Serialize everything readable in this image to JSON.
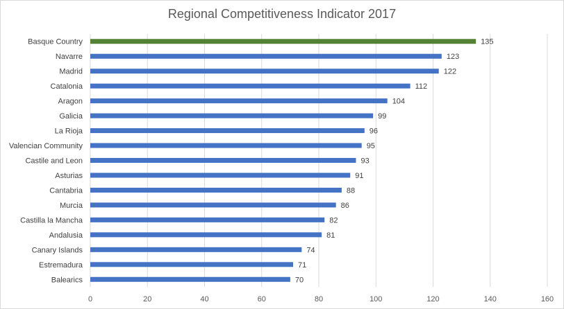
{
  "chart_data": {
    "type": "bar",
    "orientation": "horizontal",
    "title": "Regional Competitiveness Indicator 2017",
    "xlabel": "",
    "ylabel": "",
    "xlim": [
      0,
      160
    ],
    "x_ticks": [
      0,
      20,
      40,
      60,
      80,
      100,
      120,
      140,
      160
    ],
    "grid": true,
    "legend": "none",
    "categories": [
      "Basque Country",
      "Navarre",
      "Madrid",
      "Catalonia",
      "Aragon",
      "Galicia",
      "La Rioja",
      "Valencian Community",
      "Castile and Leon",
      "Asturias",
      "Cantabria",
      "Murcia",
      "Castilla la Mancha",
      "Andalusia",
      "Canary Islands",
      "Estremadura",
      "Balearics"
    ],
    "values": [
      135,
      123,
      122,
      112,
      104,
      99,
      96,
      95,
      93,
      91,
      88,
      86,
      82,
      81,
      74,
      71,
      70
    ],
    "highlight_category": "Basque Country",
    "colors": {
      "bar": "#4472c4",
      "highlight": "#548235",
      "grid": "#d9d9d9",
      "text": "#404040",
      "title": "#595959"
    }
  }
}
